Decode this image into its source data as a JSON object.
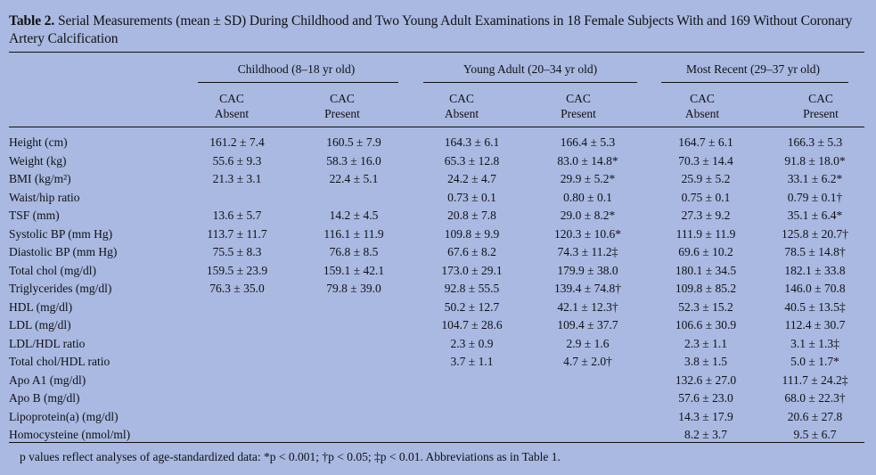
{
  "table": {
    "title_bold": "Table 2.",
    "title_rest": " Serial Measurements (mean ± SD) During Childhood and Two Young Adult Examinations in 18 Female Subjects With and 169 Without Coronary Artery Calcification",
    "groups": [
      "Childhood (8–18 yr old)",
      "Young Adult (20–34 yr old)",
      "Most Recent (29–37 yr old)"
    ],
    "col_top": "CAC",
    "col_absent": "Absent",
    "col_present": "Present",
    "rows": [
      {
        "label": "Height (cm)",
        "v": [
          "161.2 ± 7.4",
          "160.5 ± 7.9",
          "164.3 ± 6.1",
          "166.4 ± 5.3",
          "164.7 ± 6.1",
          "166.3 ± 5.3"
        ]
      },
      {
        "label": "Weight (kg)",
        "v": [
          "55.6 ± 9.3",
          "58.3 ± 16.0",
          "65.3 ± 12.8",
          "83.0 ± 14.8*",
          "70.3 ± 14.4",
          "91.8 ± 18.0*"
        ]
      },
      {
        "label": "BMI (kg/m²)",
        "v": [
          "21.3 ± 3.1",
          "22.4 ± 5.1",
          "24.2 ± 4.7",
          "29.9 ± 5.2*",
          "25.9 ± 5.2",
          "33.1 ± 6.2*"
        ]
      },
      {
        "label": "Waist/hip ratio",
        "v": [
          "",
          "",
          "0.73 ± 0.1",
          "0.80 ± 0.1",
          "0.75 ± 0.1",
          "0.79 ± 0.1†"
        ]
      },
      {
        "label": "TSF (mm)",
        "v": [
          "13.6 ± 5.7",
          "14.2 ± 4.5",
          "20.8 ± 7.8",
          "29.0 ± 8.2*",
          "27.3 ± 9.2",
          "35.1 ± 6.4*"
        ]
      },
      {
        "label": "Systolic BP (mm Hg)",
        "v": [
          "113.7 ± 11.7",
          "116.1 ± 11.9",
          "109.8 ± 9.9",
          "120.3 ± 10.6*",
          "111.9 ± 11.9",
          "125.8 ± 20.7†"
        ]
      },
      {
        "label": "Diastolic BP (mm Hg)",
        "v": [
          "75.5 ± 8.3",
          "76.8 ± 8.5",
          "67.6 ± 8.2",
          "74.3 ± 11.2‡",
          "69.6 ± 10.2",
          "78.5 ± 14.8†"
        ]
      },
      {
        "label": "Total chol (mg/dl)",
        "v": [
          "159.5 ± 23.9",
          "159.1 ± 42.1",
          "173.0 ± 29.1",
          "179.9 ± 38.0",
          "180.1 ± 34.5",
          "182.1 ± 33.8"
        ]
      },
      {
        "label": "Triglycerides (mg/dl)",
        "v": [
          "76.3 ± 35.0",
          "79.8 ± 39.0",
          "92.8 ± 55.5",
          "139.4 ± 74.8†",
          "109.8 ± 85.2",
          "146.0 ± 70.8"
        ]
      },
      {
        "label": "HDL (mg/dl)",
        "v": [
          "",
          "",
          "50.2 ± 12.7",
          "42.1 ± 12.3†",
          "52.3 ± 15.2",
          "40.5 ± 13.5‡"
        ]
      },
      {
        "label": "LDL (mg/dl)",
        "v": [
          "",
          "",
          "104.7 ± 28.6",
          "109.4 ± 37.7",
          "106.6 ± 30.9",
          "112.4 ± 30.7"
        ]
      },
      {
        "label": "LDL/HDL ratio",
        "v": [
          "",
          "",
          "2.3 ± 0.9",
          "2.9 ± 1.6",
          "2.3 ± 1.1",
          "3.1 ± 1.3‡"
        ]
      },
      {
        "label": "Total chol/HDL ratio",
        "v": [
          "",
          "",
          "3.7 ± 1.1",
          "4.7 ± 2.0†",
          "3.8 ± 1.5",
          "5.0 ± 1.7*"
        ]
      },
      {
        "label": "Apo A1 (mg/dl)",
        "v": [
          "",
          "",
          "",
          "",
          "132.6 ± 27.0",
          "111.7 ± 24.2‡"
        ]
      },
      {
        "label": "Apo B (mg/dl)",
        "v": [
          "",
          "",
          "",
          "",
          "57.6 ± 23.0",
          "68.0 ± 22.3†"
        ]
      },
      {
        "label": "Lipoprotein(a) (mg/dl)",
        "v": [
          "",
          "",
          "",
          "",
          "14.3 ± 17.9",
          "20.6 ± 27.8"
        ]
      },
      {
        "label": "Homocysteine (nmol/ml)",
        "v": [
          "",
          "",
          "",
          "",
          "8.2 ± 3.7",
          "9.5 ± 6.7"
        ]
      }
    ],
    "footnote": "p values reflect analyses of age-standardized data: *p < 0.001; †p < 0.05; ‡p < 0.01. Abbreviations as in Table 1."
  }
}
